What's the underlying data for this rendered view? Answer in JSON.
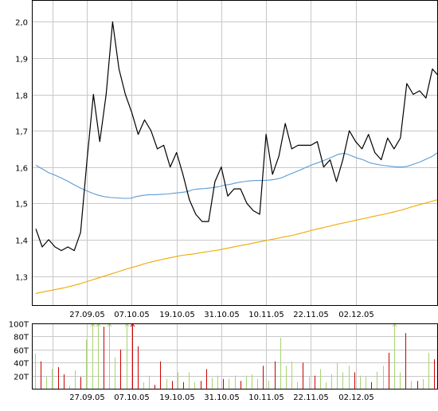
{
  "chart_data": [
    {
      "type": "line",
      "panel": "price",
      "ylim": [
        1.22,
        2.06
      ],
      "y_ticks": [
        "1,3",
        "1,4",
        "1,5",
        "1,6",
        "1,7",
        "1,8",
        "1,9",
        "2,0"
      ],
      "y_tick_values": [
        1.3,
        1.4,
        1.5,
        1.6,
        1.7,
        1.8,
        1.9,
        2.0
      ],
      "x_tick_labels": [
        "27.09.05",
        "07.10.05",
        "19.10.05",
        "31.10.05",
        "10.11.05",
        "22.11.05",
        "02.12.05"
      ],
      "x_tick_index": [
        8,
        15,
        22,
        29,
        36,
        43,
        50
      ],
      "grid": true,
      "series": [
        {
          "color": "#000000",
          "values": [
            1.43,
            1.38,
            1.4,
            1.38,
            1.37,
            1.38,
            1.37,
            1.42,
            1.62,
            1.8,
            1.67,
            1.8,
            2.0,
            1.87,
            1.8,
            1.75,
            1.69,
            1.73,
            1.7,
            1.65,
            1.66,
            1.6,
            1.64,
            1.58,
            1.51,
            1.47,
            1.45,
            1.45,
            1.56,
            1.6,
            1.52,
            1.54,
            1.54,
            1.5,
            1.48,
            1.47,
            1.69,
            1.58,
            1.63,
            1.72,
            1.65,
            1.66,
            1.66,
            1.66,
            1.67,
            1.6,
            1.62,
            1.56,
            1.62,
            1.7,
            1.67,
            1.65,
            1.69,
            1.64,
            1.62,
            1.68,
            1.65,
            1.68,
            1.83,
            1.8,
            1.81,
            1.79,
            1.87,
            1.85
          ]
        },
        {
          "color": "#5b9bd5",
          "values": [
            1.605,
            1.595,
            1.585,
            1.578,
            1.57,
            1.562,
            1.552,
            1.543,
            1.535,
            1.528,
            1.522,
            1.518,
            1.516,
            1.515,
            1.514,
            1.514,
            1.519,
            1.522,
            1.524,
            1.524,
            1.525,
            1.526,
            1.528,
            1.53,
            1.532,
            1.538,
            1.54,
            1.541,
            1.543,
            1.546,
            1.55,
            1.553,
            1.557,
            1.56,
            1.562,
            1.563,
            1.563,
            1.564,
            1.566,
            1.57,
            1.578,
            1.585,
            1.592,
            1.6,
            1.607,
            1.613,
            1.62,
            1.627,
            1.635,
            1.638,
            1.632,
            1.625,
            1.62,
            1.612,
            1.608,
            1.605,
            1.603,
            1.601,
            1.6,
            1.602,
            1.608,
            1.614,
            1.622,
            1.63,
            1.642
          ]
        },
        {
          "color": "#f0a800",
          "values": [
            1.252,
            1.257,
            1.262,
            1.267,
            1.273,
            1.28,
            1.288,
            1.296,
            1.304,
            1.312,
            1.32,
            1.327,
            1.335,
            1.341,
            1.347,
            1.352,
            1.357,
            1.36,
            1.364,
            1.368,
            1.372,
            1.377,
            1.382,
            1.387,
            1.392,
            1.397,
            1.402,
            1.407,
            1.412,
            1.418,
            1.425,
            1.431,
            1.437,
            1.443,
            1.448,
            1.454,
            1.459,
            1.465,
            1.47,
            1.476,
            1.482,
            1.49,
            1.497,
            1.504,
            1.511
          ]
        }
      ]
    },
    {
      "type": "bar",
      "panel": "volume",
      "ylim": [
        0,
        100
      ],
      "y_ticks": [
        "20T",
        "40T",
        "60T",
        "80T",
        "100T"
      ],
      "y_tick_values": [
        20,
        40,
        60,
        80,
        100
      ],
      "x_tick_labels": [
        "27.09.05",
        "07.10.05",
        "19.10.05",
        "31.10.05",
        "10.11.05",
        "22.11.05",
        "02.12.05"
      ],
      "grid": true,
      "colors": {
        "up": "#a8d470",
        "down": "#cc0000"
      },
      "series": [
        {
          "values": [
            54,
            42,
            18,
            30,
            33,
            22,
            5,
            28,
            18,
            75,
            100,
            100,
            95,
            100,
            48,
            60,
            100,
            100,
            65,
            10,
            20,
            6,
            42,
            15,
            12,
            25,
            10,
            25,
            10,
            12,
            30,
            17,
            20,
            15,
            15,
            20,
            12,
            20,
            22,
            15,
            35,
            12,
            42,
            78,
            35,
            42,
            10,
            40,
            18,
            20,
            30,
            10,
            22,
            40,
            25,
            35,
            25,
            20,
            18,
            10,
            26,
            35,
            55,
            100,
            25,
            85,
            12,
            12,
            15,
            55,
            45
          ],
          "direction": [
            "up",
            "down",
            "up",
            "up",
            "down",
            "down",
            "up",
            "up",
            "down",
            "up",
            "up",
            "up",
            "down",
            "up",
            "up",
            "down",
            "up",
            "down",
            "down",
            "up",
            "up",
            "down",
            "down",
            "up",
            "down",
            "up",
            "down",
            "up",
            "up",
            "down",
            "down",
            "up",
            "up",
            "down",
            "up",
            "up",
            "down",
            "up",
            "up",
            "up",
            "down",
            "up",
            "down",
            "up",
            "up",
            "up",
            "up",
            "down",
            "up",
            "down",
            "up",
            "up",
            "up",
            "up",
            "up",
            "up",
            "down",
            "up",
            "up",
            "down",
            "up",
            "up",
            "down",
            "up",
            "up",
            "down",
            "up",
            "down",
            "up",
            "up",
            "down"
          ],
          "overflow": [
            false,
            false,
            false,
            false,
            false,
            false,
            false,
            false,
            false,
            false,
            true,
            true,
            false,
            true,
            false,
            false,
            true,
            true,
            false,
            false,
            false,
            false,
            false,
            false,
            false,
            false,
            false,
            false,
            false,
            false,
            false,
            false,
            false,
            false,
            false,
            false,
            false,
            false,
            false,
            false,
            false,
            false,
            false,
            false,
            false,
            false,
            false,
            false,
            false,
            false,
            false,
            false,
            false,
            false,
            false,
            false,
            false,
            false,
            false,
            false,
            false,
            false,
            false,
            true,
            false,
            false,
            false,
            false,
            false,
            false,
            false
          ]
        }
      ]
    }
  ]
}
